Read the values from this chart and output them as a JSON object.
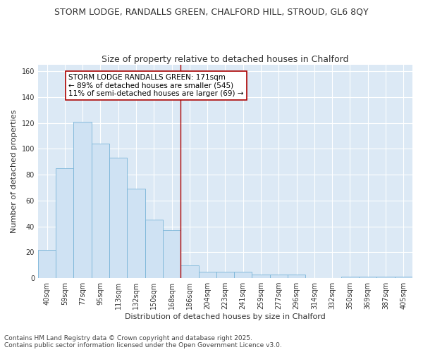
{
  "title": "STORM LODGE, RANDALLS GREEN, CHALFORD HILL, STROUD, GL6 8QY",
  "subtitle": "Size of property relative to detached houses in Chalford",
  "xlabel": "Distribution of detached houses by size in Chalford",
  "ylabel": "Number of detached properties",
  "bar_labels": [
    "40sqm",
    "59sqm",
    "77sqm",
    "95sqm",
    "113sqm",
    "132sqm",
    "150sqm",
    "168sqm",
    "186sqm",
    "204sqm",
    "223sqm",
    "241sqm",
    "259sqm",
    "277sqm",
    "296sqm",
    "314sqm",
    "332sqm",
    "350sqm",
    "369sqm",
    "387sqm",
    "405sqm"
  ],
  "bar_heights": [
    22,
    85,
    121,
    104,
    93,
    69,
    45,
    37,
    10,
    5,
    5,
    5,
    3,
    3,
    3,
    0,
    0,
    1,
    1,
    1,
    1
  ],
  "bar_color": "#cfe2f3",
  "bar_edge_color": "#7ab5d8",
  "vline_index": 7.5,
  "vline_color": "#aa0000",
  "annotation_text": "STORM LODGE RANDALLS GREEN: 171sqm\n← 89% of detached houses are smaller (545)\n11% of semi-detached houses are larger (69) →",
  "annotation_box_color": "#ffffff",
  "annotation_box_edge": "#aa0000",
  "ylim": [
    0,
    165
  ],
  "plot_bg_color": "#dce9f5",
  "fig_bg_color": "#ffffff",
  "grid_color": "#ffffff",
  "footer_text": "Contains HM Land Registry data © Crown copyright and database right 2025.\nContains public sector information licensed under the Open Government Licence v3.0.",
  "title_fontsize": 9,
  "subtitle_fontsize": 9,
  "xlabel_fontsize": 8,
  "ylabel_fontsize": 8,
  "tick_fontsize": 7,
  "annotation_fontsize": 7.5,
  "footer_fontsize": 6.5
}
